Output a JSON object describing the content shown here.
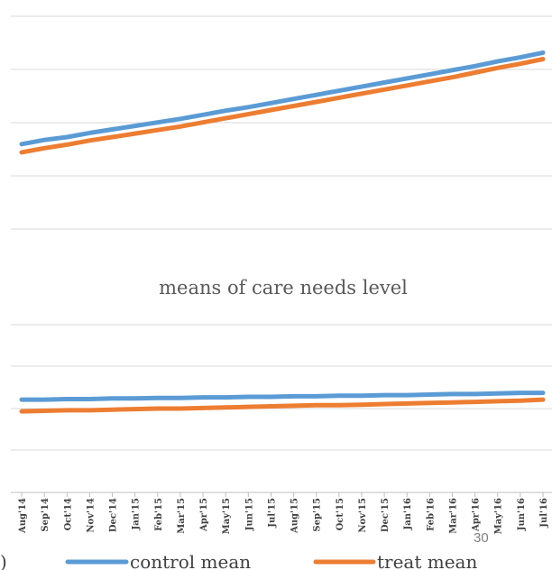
{
  "chart_data": [
    {
      "type": "line",
      "title": "",
      "categories": [
        "Aug'14",
        "Sep'14",
        "Oct'14",
        "Nov'14",
        "Dec'14",
        "Jan'15",
        "Feb'15",
        "Mar'15",
        "Apr'15",
        "May'15",
        "Jun'15",
        "Jul'15",
        "Aug'15",
        "Sep'15",
        "Oct'15",
        "Nov'15",
        "Dec'15",
        "Jan'16",
        "Feb'16",
        "Mar'16",
        "Apr'16",
        "May'16",
        "Jun'16",
        "Jul'16"
      ],
      "series": [
        {
          "name": "control mean",
          "color": "#5B9BD5",
          "values": [
            0.45,
            0.52,
            0.57,
            0.64,
            0.7,
            0.76,
            0.82,
            0.88,
            0.95,
            1.02,
            1.08,
            1.15,
            1.22,
            1.29,
            1.36,
            1.43,
            1.5,
            1.57,
            1.64,
            1.71,
            1.78,
            1.86,
            1.93,
            2.01
          ]
        },
        {
          "name": "treat mean",
          "color": "#ED7D31",
          "values": [
            0.31,
            0.38,
            0.44,
            0.51,
            0.57,
            0.63,
            0.69,
            0.75,
            0.82,
            0.89,
            0.96,
            1.03,
            1.1,
            1.17,
            1.24,
            1.31,
            1.38,
            1.45,
            1.52,
            1.59,
            1.67,
            1.75,
            1.82,
            1.9
          ]
        }
      ],
      "ylim": [
        -1,
        2.6
      ],
      "grid": true
    },
    {
      "type": "line",
      "title": "means of care needs level",
      "categories": [
        "Aug'14",
        "Sep'14",
        "Oct'14",
        "Nov'14",
        "Dec'14",
        "Jan'15",
        "Feb'15",
        "Mar'15",
        "Apr'15",
        "May'15",
        "Jun'15",
        "Jul'15",
        "Aug'15",
        "Sep'15",
        "Oct'15",
        "Nov'15",
        "Dec'15",
        "Jan'16",
        "Feb'16",
        "Mar'16",
        "Apr'16",
        "May'16",
        "Jun'16",
        "Jul'16"
      ],
      "series": [
        {
          "name": "control mean",
          "color": "#5B9BD5",
          "values": [
            2.66,
            2.66,
            2.67,
            2.67,
            2.68,
            2.68,
            2.69,
            2.69,
            2.7,
            2.7,
            2.71,
            2.71,
            2.72,
            2.72,
            2.73,
            2.73,
            2.74,
            2.74,
            2.75,
            2.76,
            2.76,
            2.77,
            2.78,
            2.78
          ]
        },
        {
          "name": "treat mean",
          "color": "#ED7D31",
          "values": [
            2.45,
            2.46,
            2.47,
            2.47,
            2.48,
            2.49,
            2.5,
            2.5,
            2.51,
            2.52,
            2.53,
            2.54,
            2.55,
            2.56,
            2.56,
            2.57,
            2.58,
            2.59,
            2.6,
            2.61,
            2.62,
            2.63,
            2.64,
            2.66
          ]
        }
      ],
      "ylim": [
        1.0,
        4.0
      ],
      "grid": true
    }
  ],
  "legend": [
    {
      "label": "control mean",
      "color": "#5B9BD5"
    },
    {
      "label": "treat mean",
      "color": "#ED7D31"
    }
  ],
  "page_number": "30",
  "edge_char": ")"
}
